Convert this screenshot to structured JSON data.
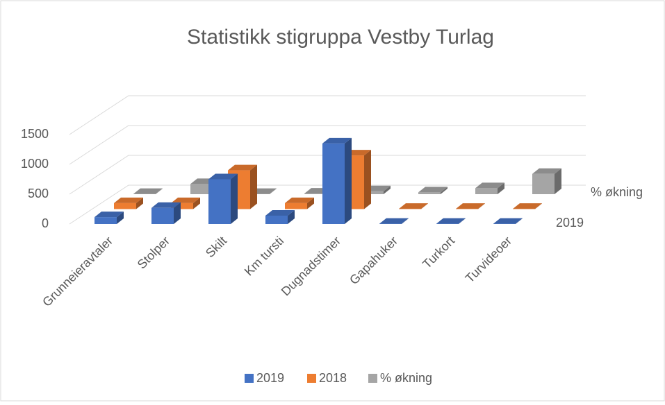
{
  "chart_data": {
    "type": "bar3d",
    "title": "Statistikk stigruppa Vestby Turlag",
    "categories": [
      "Grunneieravtaler",
      "Stolper",
      "Skilt",
      "Km tursti",
      "Dugnadstimer",
      "Gapahuker",
      "Turkort",
      "Turvideoer"
    ],
    "series": [
      {
        "name": "2019",
        "color": "#4472c4",
        "values": [
          115,
          270,
          750,
          140,
          1350,
          5,
          5,
          5
        ]
      },
      {
        "name": "2018",
        "color": "#ed7d31",
        "values": [
          100,
          100,
          650,
          100,
          900,
          5,
          5,
          5
        ]
      },
      {
        "name": "% økning",
        "color": "#a5a5a5",
        "values": [
          5,
          170,
          5,
          10,
          50,
          30,
          100,
          340
        ]
      }
    ],
    "ylim": [
      0,
      1500
    ],
    "yticks": [
      0,
      500,
      1000,
      1500
    ],
    "grid": true,
    "legend": "bottom"
  }
}
